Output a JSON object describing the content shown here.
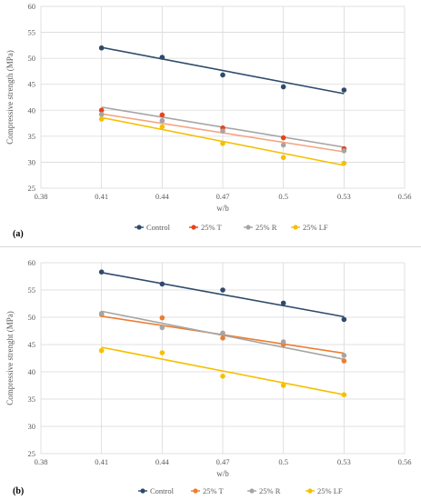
{
  "chart_data": [
    {
      "panel_label": "(a)",
      "type": "scatter",
      "xlabel": "w/b",
      "ylabel": "Compressive strength (MPa)",
      "xlim": [
        0.38,
        0.56
      ],
      "ylim": [
        25,
        60
      ],
      "x_ticks": [
        "0.38",
        "0.41",
        "0.44",
        "0.47",
        "0.5",
        "0.53",
        "0.56"
      ],
      "y_ticks": [
        "25",
        "30",
        "35",
        "40",
        "45",
        "50",
        "55",
        "60"
      ],
      "grid": true,
      "trendlines": true,
      "legend_position": "bottom",
      "x": [
        0.41,
        0.44,
        0.47,
        0.5,
        0.53
      ],
      "series": [
        {
          "name": "Control",
          "color": "#2e4a6b",
          "values": [
            52.0,
            50.2,
            46.8,
            44.5,
            43.9
          ],
          "trend": [
            52.1,
            43.2
          ]
        },
        {
          "name": "25% T",
          "color": "#e8431a",
          "values": [
            40.0,
            39.1,
            36.6,
            34.7,
            32.6
          ],
          "trend": [
            39.3,
            32.0
          ]
        },
        {
          "name": "25% R",
          "color": "#a5a5a5",
          "values": [
            39.2,
            38.0,
            36.0,
            33.3,
            32.2
          ],
          "trend": [
            40.6,
            32.9
          ]
        },
        {
          "name": "25% LF",
          "color": "#f5c000",
          "values": [
            38.3,
            36.8,
            33.6,
            30.9,
            29.8
          ],
          "trend": [
            38.6,
            29.4
          ]
        }
      ],
      "trendline_colors": {
        "25% T": "#f4a582"
      }
    },
    {
      "panel_label": "(b)",
      "type": "scatter",
      "xlabel": "w/b",
      "ylabel": "Compressive strenght (MPa)",
      "xlim": [
        0.38,
        0.56
      ],
      "ylim": [
        25,
        60
      ],
      "x_ticks": [
        "0.38",
        "0.41",
        "0.44",
        "0.47",
        "0.5",
        "0.53",
        "0.56"
      ],
      "y_ticks": [
        "25",
        "30",
        "35",
        "40",
        "45",
        "50",
        "55",
        "60"
      ],
      "grid": true,
      "trendlines": true,
      "legend_position": "bottom",
      "x": [
        0.41,
        0.44,
        0.47,
        0.5,
        0.53
      ],
      "series": [
        {
          "name": "Control",
          "color": "#2e4a6b",
          "values": [
            58.3,
            56.1,
            55.0,
            52.6,
            49.6
          ],
          "trend": [
            58.2,
            50.1
          ]
        },
        {
          "name": "25% T",
          "color": "#ed7d31",
          "values": [
            50.5,
            49.9,
            46.2,
            45.0,
            42.0
          ],
          "trend": [
            50.2,
            43.4
          ]
        },
        {
          "name": "25% R",
          "color": "#a5a5a5",
          "values": [
            50.7,
            48.1,
            47.1,
            45.5,
            43.0
          ],
          "trend": [
            51.1,
            42.3
          ]
        },
        {
          "name": "25% LF",
          "color": "#f5c000",
          "values": [
            43.9,
            43.5,
            39.2,
            37.5,
            35.8
          ],
          "trend": [
            44.5,
            35.8
          ]
        }
      ]
    }
  ]
}
